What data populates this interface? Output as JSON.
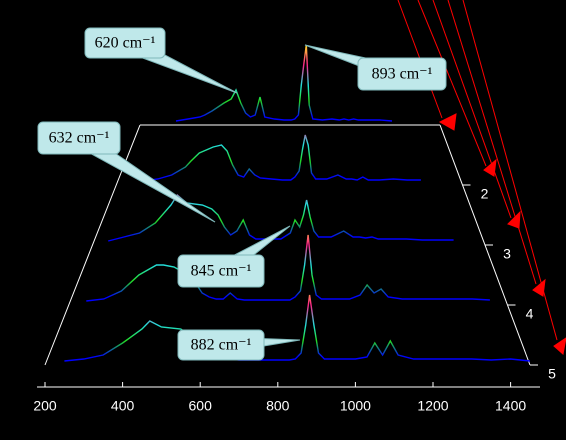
{
  "chart_data": {
    "type": "waterfall",
    "x": [
      200,
      250,
      300,
      350,
      400,
      450,
      470,
      500,
      550,
      580,
      600,
      620,
      640,
      660,
      680,
      700,
      720,
      760,
      800,
      830,
      845,
      860,
      872,
      882,
      893,
      905,
      920,
      960,
      1000,
      1030,
      1050,
      1070,
      1090,
      1110,
      1150,
      1200,
      1250,
      1300,
      1350,
      1400,
      1450
    ],
    "series": [
      {
        "values": [
          null,
          null,
          null,
          4,
          6,
          8,
          10,
          14,
          22,
          26,
          35,
          22,
          12,
          8,
          10,
          28,
          8,
          6,
          5,
          5,
          6,
          10,
          40,
          60,
          80,
          20,
          6,
          5,
          6,
          5,
          6,
          5,
          6,
          5,
          5,
          5,
          4,
          null,
          null,
          null,
          null
        ]
      },
      {
        "values": [
          null,
          null,
          4,
          6,
          10,
          18,
          24,
          32,
          38,
          40,
          34,
          20,
          10,
          8,
          16,
          10,
          7,
          6,
          5,
          5,
          8,
          14,
          35,
          50,
          40,
          12,
          6,
          6,
          10,
          6,
          6,
          5,
          8,
          5,
          5,
          6,
          5,
          5,
          null,
          null,
          null
        ]
      },
      {
        "values": [
          null,
          4,
          8,
          12,
          22,
          40,
          50,
          42,
          40,
          36,
          30,
          18,
          10,
          14,
          25,
          10,
          6,
          6,
          6,
          12,
          25,
          18,
          30,
          45,
          28,
          14,
          8,
          8,
          14,
          8,
          8,
          7,
          8,
          6,
          6,
          6,
          5,
          5,
          5,
          null,
          null
        ]
      },
      {
        "values": [
          null,
          4,
          6,
          14,
          30,
          40,
          40,
          38,
          28,
          12,
          8,
          6,
          6,
          12,
          6,
          5,
          5,
          5,
          5,
          5,
          8,
          14,
          40,
          70,
          30,
          10,
          6,
          6,
          6,
          10,
          20,
          12,
          16,
          8,
          6,
          6,
          6,
          6,
          6,
          5,
          null
        ]
      },
      {
        "values": [
          null,
          4,
          6,
          10,
          22,
          36,
          44,
          38,
          36,
          28,
          14,
          8,
          6,
          6,
          6,
          5,
          5,
          5,
          5,
          5,
          6,
          12,
          40,
          70,
          40,
          12,
          6,
          6,
          6,
          8,
          22,
          10,
          24,
          10,
          6,
          6,
          6,
          6,
          5,
          6,
          4
        ]
      }
    ],
    "xlim": [
      200,
      1450
    ],
    "xticks": [
      200,
      400,
      600,
      800,
      1000,
      1200,
      1400
    ],
    "zlim": [
      0,
      100
    ],
    "depth_lim": [
      1,
      5
    ],
    "depth_ticks": [
      2,
      3,
      4,
      5
    ],
    "colormap": [
      "#0000ff",
      "#0000ff",
      "#22dd22",
      "#22dddd",
      "#ff2288",
      "#ffdd22"
    ],
    "axis_color": "#ffffff",
    "annotations": [
      "620 cm⁻¹",
      "893 cm⁻¹",
      "632 cm⁻¹",
      "845 cm⁻¹",
      "882 cm⁻¹"
    ]
  }
}
